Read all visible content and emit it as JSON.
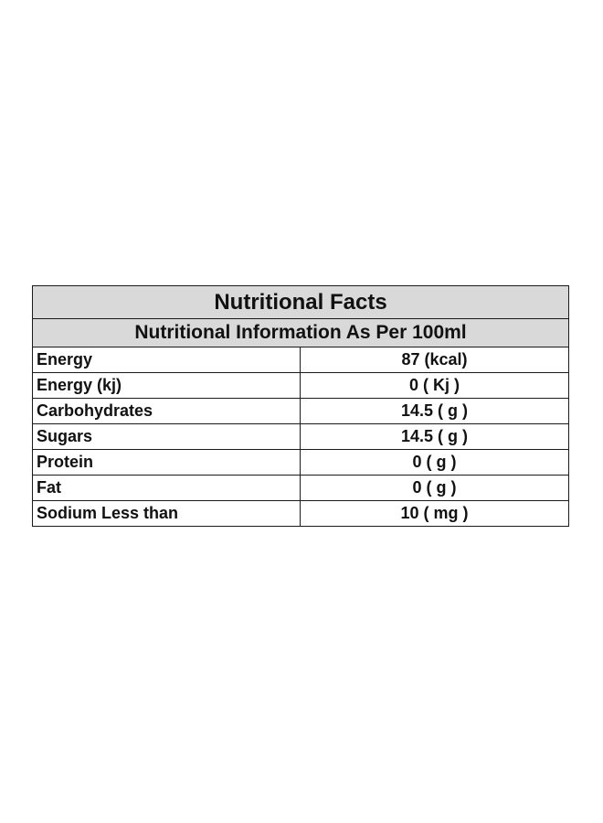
{
  "table": {
    "title": "Nutritional Facts",
    "subtitle": "Nutritional Information As Per 100ml",
    "rows": [
      {
        "label": "Energy",
        "value": "87 (kcal)"
      },
      {
        "label": "Energy (kj)",
        "value": "0 ( Kj )"
      },
      {
        "label": "Carbohydrates",
        "value": "14.5 ( g )"
      },
      {
        "label": "Sugars",
        "value": "14.5 ( g )"
      },
      {
        "label": "Protein",
        "value": "0 ( g )"
      },
      {
        "label": "Fat",
        "value": "0 ( g )"
      },
      {
        "label": "Sodium Less than",
        "value": "10 ( mg )"
      }
    ]
  },
  "colors": {
    "header_background": "#d9d9d9",
    "border": "#1a1a1a",
    "text": "#111111"
  }
}
